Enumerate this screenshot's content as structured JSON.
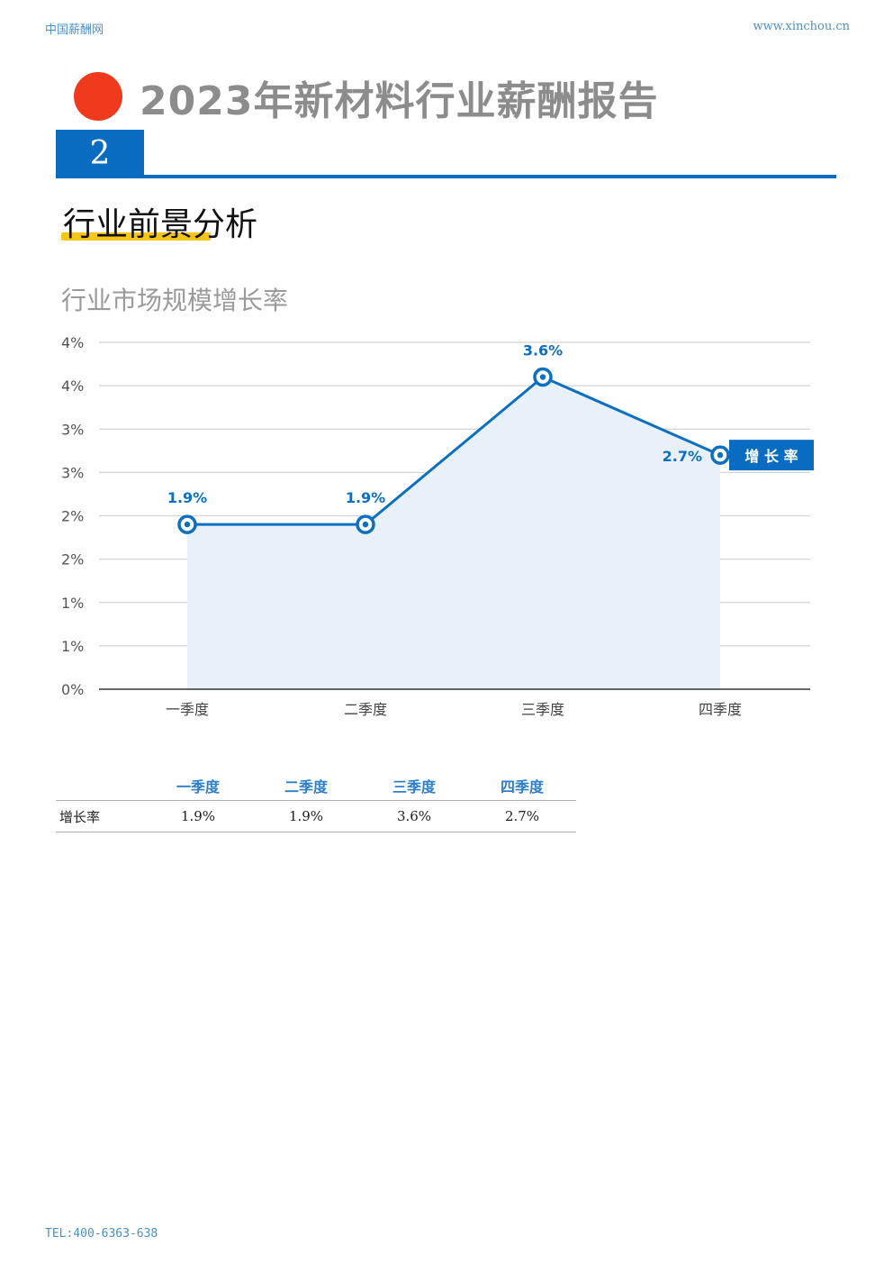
{
  "header": {
    "site_name": "中国薪酬网",
    "site_url": "www.xinchou.cn",
    "report_title": "2023年新材料行业薪酬报告"
  },
  "section": {
    "number": "2",
    "title": "行业前景分析"
  },
  "colors": {
    "accent_blue": "#0a6cc0",
    "line_blue": "#0d6fbf",
    "area_fill": "#e8f1fa",
    "dot_red": "#f03a1e",
    "underline_yellow": "#f5c518"
  },
  "chart_data": {
    "type": "line",
    "title": "行业市场规模增长率",
    "categories": [
      "一季度",
      "二季度",
      "三季度",
      "四季度"
    ],
    "series": [
      {
        "name": "增 长 率",
        "values": [
          1.9,
          1.9,
          3.6,
          2.7
        ],
        "labels": [
          "1.9%",
          "1.9%",
          "3.6%",
          "2.7%"
        ]
      }
    ],
    "y_ticks": [
      {
        "value": 0,
        "label": "0%"
      },
      {
        "value": 0.5,
        "label": "1%"
      },
      {
        "value": 1.0,
        "label": "1%"
      },
      {
        "value": 1.5,
        "label": "2%"
      },
      {
        "value": 2.0,
        "label": "2%"
      },
      {
        "value": 2.5,
        "label": "3%"
      },
      {
        "value": 3.0,
        "label": "3%"
      },
      {
        "value": 3.5,
        "label": "4%"
      },
      {
        "value": 4.0,
        "label": "4%"
      }
    ],
    "ylim": [
      0,
      4
    ],
    "grid": true,
    "area_fill": true,
    "legend_position": "right"
  },
  "table": {
    "headers": [
      "",
      "一季度",
      "二季度",
      "三季度",
      "四季度"
    ],
    "rows": [
      {
        "label": "增长率",
        "values": [
          "1.9%",
          "1.9%",
          "3.6%",
          "2.7%"
        ]
      }
    ]
  },
  "footer": {
    "tel": "TEL:400-6363-638"
  }
}
